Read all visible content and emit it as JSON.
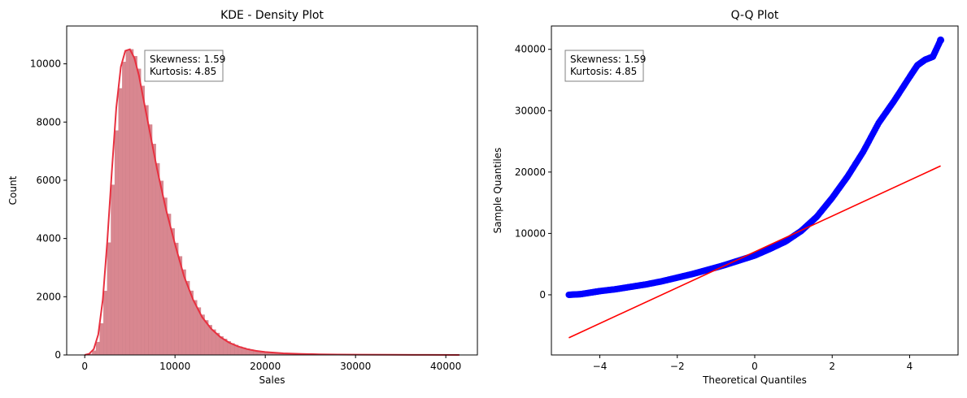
{
  "chart_data": [
    {
      "type": "area",
      "title": "KDE - Density Plot",
      "xlabel": "Sales",
      "ylabel": "Count",
      "xlim": [
        -2000,
        43500
      ],
      "ylim": [
        0,
        11300
      ],
      "xticks": [
        0,
        10000,
        20000,
        30000,
        40000
      ],
      "yticks": [
        0,
        2000,
        4000,
        6000,
        8000,
        10000
      ],
      "grid": false,
      "colors": {
        "histogram": "#d98790",
        "kde_line": "#e8303f"
      },
      "kde_curve": {
        "x": [
          0,
          500,
          1000,
          1500,
          2000,
          2500,
          3000,
          3500,
          4000,
          4500,
          5000,
          5500,
          6000,
          6500,
          7000,
          7500,
          8000,
          9000,
          10000,
          11000,
          12000,
          13000,
          14000,
          15000,
          16000,
          17000,
          18000,
          19000,
          20000,
          22000,
          24000,
          26000,
          28000,
          30000,
          34000,
          38000,
          41500
        ],
        "y": [
          0,
          40,
          200,
          700,
          1900,
          3900,
          6300,
          8500,
          9900,
          10450,
          10500,
          10200,
          9600,
          8800,
          8000,
          7200,
          6400,
          5000,
          3800,
          2700,
          1900,
          1300,
          900,
          620,
          420,
          290,
          200,
          140,
          100,
          55,
          35,
          22,
          15,
          10,
          6,
          3,
          0
        ]
      },
      "annotation": [
        "Skewness: 1.59",
        "Kurtosis: 4.85"
      ]
    },
    {
      "type": "scatter",
      "title": "Q-Q Plot",
      "xlabel": "Theoretical Quantiles",
      "ylabel": "Sample Quantiles",
      "xlim": [
        -5.25,
        5.25
      ],
      "ylim": [
        -9800,
        43800
      ],
      "xticks": [
        -4,
        -2,
        0,
        2,
        4
      ],
      "xtick_labels": [
        "−4",
        "−2",
        "0",
        "2",
        "4"
      ],
      "yticks": [
        0,
        10000,
        20000,
        30000,
        40000
      ],
      "grid": false,
      "colors": {
        "points": "#0000ff",
        "line": "#ff0000"
      },
      "points": {
        "x": [
          -4.8,
          -4.5,
          -4.2,
          -4.0,
          -3.6,
          -3.2,
          -2.8,
          -2.4,
          -2.0,
          -1.6,
          -1.2,
          -0.8,
          -0.4,
          0.0,
          0.4,
          0.8,
          1.2,
          1.6,
          2.0,
          2.4,
          2.8,
          3.2,
          3.6,
          4.0,
          4.2,
          4.4,
          4.6,
          4.8
        ],
        "y": [
          0,
          100,
          400,
          600,
          900,
          1300,
          1700,
          2200,
          2800,
          3400,
          4100,
          4800,
          5600,
          6400,
          7500,
          8700,
          10400,
          12700,
          15800,
          19300,
          23300,
          28000,
          31600,
          35500,
          37400,
          38300,
          38800,
          41500
        ]
      },
      "reference_line": {
        "x": [
          -4.8,
          4.8
        ],
        "y": [
          -7000,
          21000
        ]
      },
      "annotation": [
        "Skewness: 1.59",
        "Kurtosis: 4.85"
      ]
    }
  ]
}
